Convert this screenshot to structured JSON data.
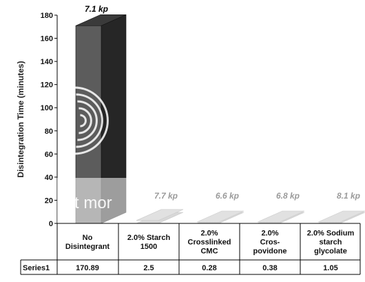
{
  "chart_data": {
    "type": "bar",
    "ylabel": "Disintegration Time (minutes)",
    "ylim": [
      0,
      180
    ],
    "yticks": [
      0,
      20,
      40,
      60,
      80,
      100,
      120,
      140,
      160,
      180
    ],
    "categories": [
      [
        "No",
        "Disintegrant"
      ],
      [
        "2.0% Starch",
        "1500"
      ],
      [
        "2.0%",
        "Crosslinked",
        "CMC"
      ],
      [
        "2.0%",
        "Cros-",
        "povidone"
      ],
      [
        "2.0% Sodium",
        "starch",
        "glycolate"
      ]
    ],
    "series": [
      {
        "name": "Series1",
        "values": [
          170.89,
          2.5,
          0.28,
          0.38,
          1.05
        ]
      }
    ],
    "data_table_values": [
      "170.89",
      "2.5",
      "0.28",
      "0.38",
      "1.05"
    ],
    "hardness_labels": [
      "7.1 kp",
      "7.7 kp",
      "6.6 kp",
      "6.8 kp",
      "8.1 kp"
    ],
    "watermark_text": "t mor",
    "colors": {
      "first_bar_front": "#5c5c5c",
      "first_bar_side": "#262626",
      "first_bar_top": "#3a3a3a",
      "other_bars": "#a8a8a8",
      "table_border": "#000000"
    },
    "grid": false,
    "legend": "none"
  }
}
